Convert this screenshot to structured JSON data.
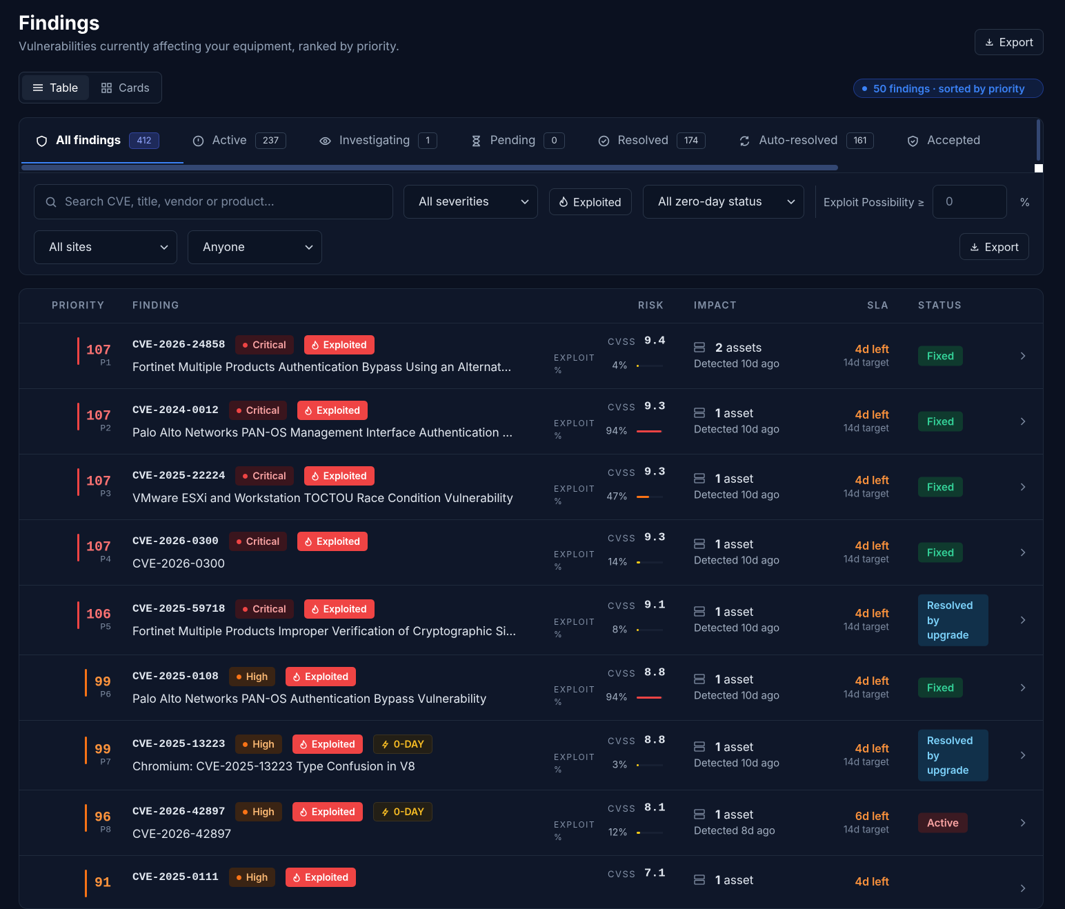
{
  "header": {
    "title": "Findings",
    "subtitle": "Vulnerabilities currently affecting your equipment, ranked by priority.",
    "export": "Export"
  },
  "view_toggle": {
    "table": "Table",
    "cards": "Cards"
  },
  "summary": "50 findings · sorted by priority",
  "tabs": [
    {
      "label": "All findings",
      "count": 412
    },
    {
      "label": "Active",
      "count": 237
    },
    {
      "label": "Investigating",
      "count": 1
    },
    {
      "label": "Pending",
      "count": 0
    },
    {
      "label": "Resolved",
      "count": 174
    },
    {
      "label": "Auto-resolved",
      "count": 161
    },
    {
      "label": "Accepted"
    }
  ],
  "filters": {
    "search_placeholder": "Search CVE, title, vendor or product...",
    "severity": "All severities",
    "exploited": "Exploited",
    "zero_day": "All zero-day status",
    "exploit_possibility": "Exploit Possibility ≥",
    "exploit_possibility_min": 0,
    "percent": "%",
    "sites": "All sites",
    "assignee": "Anyone",
    "export": "Export"
  },
  "table": {
    "columns": [
      "PRIORITY",
      "FINDING",
      "RISK",
      "IMPACT",
      "SLA",
      "STATUS"
    ],
    "cvss_label": "CVSS",
    "exploit_label": "EXPLOIT %",
    "rows": [
      {
        "priority": 107,
        "rank": "P1",
        "cve": "CVE-2026-24858",
        "severity": "Critical",
        "exploited": "Exploited",
        "title": "Fortinet Multiple Products Authentication Bypass Using an Alternat...",
        "cvss": 9.4,
        "exploit": 4,
        "exploit_label": "4%",
        "asset_count": 2,
        "asset_unit": "assets",
        "detected": "Detected 10d ago",
        "sla": "4d left",
        "sla_target": "14d target",
        "status": "Fixed"
      },
      {
        "priority": 107,
        "rank": "P2",
        "cve": "CVE-2024-0012",
        "severity": "Critical",
        "exploited": "Exploited",
        "title": "Palo Alto Networks PAN-OS Management Interface Authentication ...",
        "cvss": 9.3,
        "exploit": 94,
        "exploit_label": "94%",
        "asset_count": 1,
        "asset_unit": "asset",
        "detected": "Detected 10d ago",
        "sla": "4d left",
        "sla_target": "14d target",
        "status": "Fixed"
      },
      {
        "priority": 107,
        "rank": "P3",
        "cve": "CVE-2025-22224",
        "severity": "Critical",
        "exploited": "Exploited",
        "title": "VMware ESXi and Workstation TOCTOU Race Condition Vulnerability",
        "cvss": 9.3,
        "exploit": 47,
        "exploit_label": "47%",
        "asset_count": 1,
        "asset_unit": "asset",
        "detected": "Detected 10d ago",
        "sla": "4d left",
        "sla_target": "14d target",
        "status": "Fixed"
      },
      {
        "priority": 107,
        "rank": "P4",
        "cve": "CVE-2026-0300",
        "severity": "Critical",
        "exploited": "Exploited",
        "title": "CVE-2026-0300",
        "cvss": 9.3,
        "exploit": 14,
        "exploit_label": "14%",
        "asset_count": 1,
        "asset_unit": "asset",
        "detected": "Detected 10d ago",
        "sla": "4d left",
        "sla_target": "14d target",
        "status": "Fixed"
      },
      {
        "priority": 106,
        "rank": "P5",
        "cve": "CVE-2025-59718",
        "severity": "Critical",
        "exploited": "Exploited",
        "title": "Fortinet Multiple Products Improper Verification of Cryptographic Si...",
        "cvss": 9.1,
        "exploit": 8,
        "exploit_label": "8%",
        "asset_count": 1,
        "asset_unit": "asset",
        "detected": "Detected 10d ago",
        "sla": "4d left",
        "sla_target": "14d target",
        "status": "Resolved by upgrade"
      },
      {
        "priority": 99,
        "rank": "P6",
        "cve": "CVE-2025-0108",
        "severity": "High",
        "exploited": "Exploited",
        "title": "Palo Alto Networks PAN-OS Authentication Bypass Vulnerability",
        "cvss": 8.8,
        "exploit": 94,
        "exploit_label": "94%",
        "asset_count": 1,
        "asset_unit": "asset",
        "detected": "Detected 10d ago",
        "sla": "4d left",
        "sla_target": "14d target",
        "status": "Fixed"
      },
      {
        "priority": 99,
        "rank": "P7",
        "cve": "CVE-2025-13223",
        "severity": "High",
        "exploited": "Exploited",
        "zero_day": "0-DAY",
        "title": "Chromium: CVE-2025-13223 Type Confusion in V8",
        "cvss": 8.8,
        "exploit": 3,
        "exploit_label": "3%",
        "asset_count": 1,
        "asset_unit": "asset",
        "detected": "Detected 10d ago",
        "sla": "4d left",
        "sla_target": "14d target",
        "status": "Resolved by upgrade"
      },
      {
        "priority": 96,
        "rank": "P8",
        "cve": "CVE-2026-42897",
        "severity": "High",
        "exploited": "Exploited",
        "zero_day": "0-DAY",
        "title": "CVE-2026-42897",
        "cvss": 8.1,
        "exploit": 12,
        "exploit_label": "12%",
        "asset_count": 1,
        "asset_unit": "asset",
        "detected": "Detected 8d ago",
        "sla": "6d left",
        "sla_target": "14d target",
        "status": "Active"
      },
      {
        "priority": 91,
        "cve": "CVE-2025-0111",
        "severity": "High",
        "exploited": "Exploited",
        "cvss": 7.1,
        "asset_count": 1,
        "asset_unit": "asset",
        "sla": "4d left"
      }
    ]
  }
}
